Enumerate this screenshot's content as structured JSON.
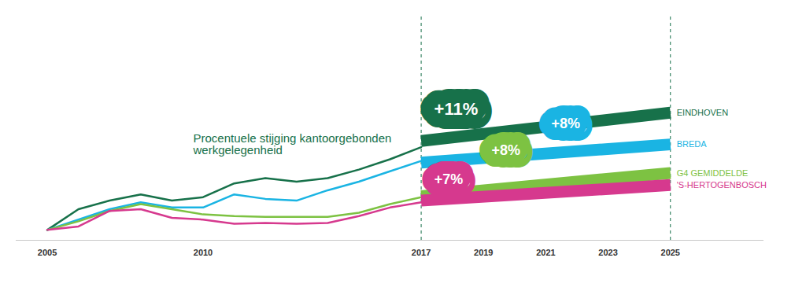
{
  "chart_data": {
    "type": "line",
    "title": "Procentuele stijging kantoorgebonden werkgelegenheid",
    "x": [
      2005,
      2006,
      2007,
      2008,
      2009,
      2010,
      2011,
      2012,
      2013,
      2014,
      2015,
      2016,
      2017
    ],
    "series": [
      {
        "name": "EINDHOVEN",
        "color": "#17714a",
        "values": [
          100,
          106,
          108.5,
          110.3,
          108.5,
          109.5,
          113.5,
          115,
          114,
          115,
          117.5,
          120.5,
          124
        ],
        "forecast_x": [
          2017,
          2025
        ],
        "forecast_values": [
          125.8,
          134
        ],
        "annotation": "+11%"
      },
      {
        "name": "BREDA",
        "color": "#1ab4e3",
        "values": [
          100,
          103,
          106,
          108,
          106.5,
          106.5,
          110.3,
          109,
          108.5,
          111.5,
          114,
          117,
          120
        ],
        "forecast_x": [
          2017,
          2025
        ],
        "forecast_values": [
          119.5,
          124.8
        ],
        "annotation": "+8%"
      },
      {
        "name": "G4 GEMIDDELDE",
        "color": "#7dc242",
        "values": [
          100,
          102.5,
          105.5,
          107.5,
          106,
          104.5,
          104,
          103.8,
          103.8,
          103.8,
          105,
          107.5,
          109.5
        ],
        "forecast_x": [
          2017,
          2025
        ],
        "forecast_values": [
          109.8,
          116.5
        ],
        "annotation": "+8%"
      },
      {
        "name": "'S-HERTOGENBOSCH",
        "color": "#d6398e",
        "values": [
          100,
          101,
          105.5,
          106,
          103.5,
          103,
          101.8,
          102,
          101.8,
          102,
          104,
          106.5,
          108
        ],
        "forecast_x": [
          2017,
          2025
        ],
        "forecast_values": [
          108.5,
          113
        ],
        "annotation": "+7%"
      }
    ],
    "xlim": [
      2004,
      2028
    ],
    "xticks": [
      2005,
      2010,
      2017,
      2019,
      2021,
      2023,
      2025
    ],
    "ylim": [
      97,
      162
    ],
    "yticks": [],
    "grid": false,
    "tick_labels": "x"
  }
}
